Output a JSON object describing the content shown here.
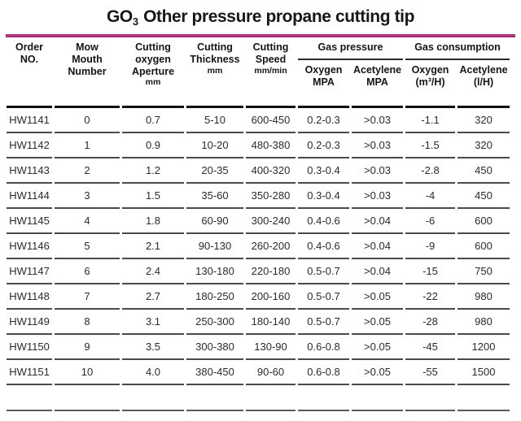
{
  "title": {
    "prefix": "GO",
    "subscript": "3",
    "rest": " Other pressure propane cutting tip"
  },
  "accent_color": "#b5327e",
  "table": {
    "columns": [
      {
        "main": "Order\nNO.",
        "unit": ""
      },
      {
        "main": "Mow\nMouth\nNumber",
        "unit": ""
      },
      {
        "main": "Cutting\noxygen\nAperture",
        "unit": "mm"
      },
      {
        "main": "Cutting\nThickness",
        "unit": "mm"
      },
      {
        "main": "Cutting\nSpeed",
        "unit": "mm/min"
      }
    ],
    "groups": [
      {
        "label": "Gas pressure",
        "sub": [
          "Oxygen\nMPA",
          "Acetylene\nMPA"
        ]
      },
      {
        "label": "Gas consumption",
        "sub": [
          "Oxygen\n(m³/H)",
          "Acetylene\n(l/H)"
        ]
      }
    ],
    "col_keys": [
      "order-no",
      "mow-mouth-number",
      "cutting-oxygen-aperture",
      "cutting-thickness",
      "cutting-speed",
      "oxygen-mpa",
      "acetylene-mpa",
      "oxygen-consumption",
      "acetylene-consumption"
    ],
    "rows": [
      [
        "HW1141",
        "0",
        "0.7",
        "5-10",
        "600-450",
        "0.2-0.3",
        ">0.03",
        "-1.1",
        "320"
      ],
      [
        "HW1142",
        "1",
        "0.9",
        "10-20",
        "480-380",
        "0.2-0.3",
        ">0.03",
        "-1.5",
        "320"
      ],
      [
        "HW1143",
        "2",
        "1.2",
        "20-35",
        "400-320",
        "0.3-0.4",
        ">0.03",
        "-2.8",
        "450"
      ],
      [
        "HW1144",
        "3",
        "1.5",
        "35-60",
        "350-280",
        "0.3-0.4",
        ">0.03",
        "-4",
        "450"
      ],
      [
        "HW1145",
        "4",
        "1.8",
        "60-90",
        "300-240",
        "0.4-0.6",
        ">0.04",
        "-6",
        "600"
      ],
      [
        "HW1146",
        "5",
        "2.1",
        "90-130",
        "260-200",
        "0.4-0.6",
        ">0.04",
        "-9",
        "600"
      ],
      [
        "HW1147",
        "6",
        "2.4",
        "130-180",
        "220-180",
        "0.5-0.7",
        ">0.04",
        "-15",
        "750"
      ],
      [
        "HW1148",
        "7",
        "2.7",
        "180-250",
        "200-160",
        "0.5-0.7",
        ">0.05",
        "-22",
        "980"
      ],
      [
        "HW1149",
        "8",
        "3.1",
        "250-300",
        "180-140",
        "0.5-0.7",
        ">0.05",
        "-28",
        "980"
      ],
      [
        "HW1150",
        "9",
        "3.5",
        "300-380",
        "130-90",
        "0.6-0.8",
        ">0.05",
        "-45",
        "1200"
      ],
      [
        "HW1151",
        "10",
        "4.0",
        "380-450",
        "90-60",
        "0.6-0.8",
        ">0.05",
        "-55",
        "1500"
      ]
    ]
  }
}
